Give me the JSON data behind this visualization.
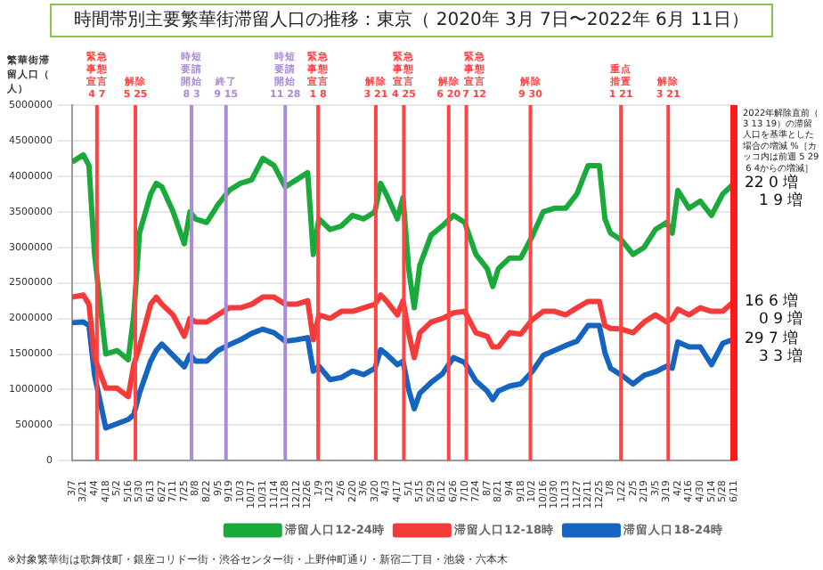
{
  "chart_data": {
    "type": "line",
    "title": "時間帯別主要繁華街滞留人口の推移：東京（ 2020年 3月 7日〜2022年 6月 11日）",
    "ylabel": "繁華街滞留人口（人）",
    "x": [
      "2020-03-07",
      "2020-03-21",
      "2020-03-28",
      "2020-04-04",
      "2020-04-18",
      "2020-05-02",
      "2020-05-16",
      "2020-05-23",
      "2020-05-30",
      "2020-06-13",
      "2020-06-20",
      "2020-06-27",
      "2020-07-11",
      "2020-07-25",
      "2020-08-01",
      "2020-08-08",
      "2020-08-22",
      "2020-09-05",
      "2020-09-19",
      "2020-10-03",
      "2020-10-17",
      "2020-10-31",
      "2020-11-14",
      "2020-11-28",
      "2020-12-12",
      "2020-12-26",
      "2021-01-02",
      "2021-01-09",
      "2021-01-23",
      "2021-02-06",
      "2021-02-20",
      "2021-03-06",
      "2021-03-20",
      "2021-03-27",
      "2021-04-03",
      "2021-04-17",
      "2021-04-24",
      "2021-05-01",
      "2021-05-08",
      "2021-05-15",
      "2021-05-29",
      "2021-06-12",
      "2021-06-26",
      "2021-07-10",
      "2021-07-24",
      "2021-08-07",
      "2021-08-14",
      "2021-08-21",
      "2021-09-04",
      "2021-09-18",
      "2021-10-02",
      "2021-10-16",
      "2021-10-30",
      "2021-11-13",
      "2021-11-27",
      "2021-12-11",
      "2021-12-25",
      "2022-01-01",
      "2022-01-08",
      "2022-01-22",
      "2022-02-05",
      "2022-02-19",
      "2022-03-05",
      "2022-03-19",
      "2022-03-26",
      "2022-04-02",
      "2022-04-16",
      "2022-04-30",
      "2022-05-14",
      "2022-05-28",
      "2022-06-11"
    ],
    "series": [
      {
        "name": "滞留人口12-24時",
        "color": "#1aaa3c",
        "values": [
          4200000,
          4300000,
          4150000,
          2900000,
          1500000,
          1550000,
          1420000,
          2050000,
          3200000,
          3750000,
          3900000,
          3850000,
          3500000,
          3050000,
          3500000,
          3400000,
          3350000,
          3600000,
          3800000,
          3900000,
          3950000,
          4250000,
          4150000,
          3850000,
          3950000,
          4050000,
          2900000,
          3400000,
          3250000,
          3300000,
          3450000,
          3400000,
          3500000,
          3900000,
          3750000,
          3400000,
          3700000,
          2700000,
          2150000,
          2750000,
          3170000,
          3300000,
          3450000,
          3350000,
          2900000,
          2700000,
          2450000,
          2700000,
          2850000,
          2850000,
          3150000,
          3500000,
          3550000,
          3550000,
          3750000,
          4150000,
          4150000,
          3400000,
          3200000,
          3100000,
          2900000,
          3000000,
          3250000,
          3350000,
          3200000,
          3800000,
          3550000,
          3650000,
          3450000,
          3750000,
          3900000
        ]
      },
      {
        "name": "滞留人口12-18時",
        "color": "#f53a3a",
        "values": [
          2300000,
          2330000,
          2200000,
          1450000,
          1020000,
          1020000,
          900000,
          1350000,
          1600000,
          2200000,
          2300000,
          2200000,
          2050000,
          1750000,
          2000000,
          1950000,
          1950000,
          2050000,
          2150000,
          2150000,
          2200000,
          2300000,
          2300000,
          2200000,
          2200000,
          2250000,
          1700000,
          2050000,
          2000000,
          2100000,
          2100000,
          2150000,
          2200000,
          2330000,
          2250000,
          2050000,
          2250000,
          1800000,
          1450000,
          1800000,
          1950000,
          2000000,
          2080000,
          2100000,
          1800000,
          1750000,
          1600000,
          1600000,
          1800000,
          1780000,
          1980000,
          2100000,
          2100000,
          2050000,
          2150000,
          2240000,
          2240000,
          1900000,
          1860000,
          1850000,
          1800000,
          1950000,
          2050000,
          1950000,
          2000000,
          2130000,
          2050000,
          2150000,
          2100000,
          2100000,
          2240000
        ]
      },
      {
        "name": "滞留人口18-24時",
        "color": "#1565c0",
        "values": [
          1940000,
          1950000,
          1900000,
          1200000,
          460000,
          520000,
          580000,
          650000,
          950000,
          1400000,
          1550000,
          1640000,
          1480000,
          1320000,
          1490000,
          1400000,
          1400000,
          1550000,
          1630000,
          1700000,
          1790000,
          1850000,
          1800000,
          1680000,
          1700000,
          1730000,
          1260000,
          1330000,
          1140000,
          1170000,
          1260000,
          1210000,
          1300000,
          1560000,
          1500000,
          1350000,
          1400000,
          1000000,
          730000,
          950000,
          1100000,
          1220000,
          1450000,
          1380000,
          1120000,
          980000,
          860000,
          980000,
          1050000,
          1080000,
          1250000,
          1480000,
          1550000,
          1620000,
          1680000,
          1900000,
          1900000,
          1520000,
          1300000,
          1200000,
          1080000,
          1200000,
          1250000,
          1330000,
          1300000,
          1670000,
          1600000,
          1600000,
          1350000,
          1650000,
          1710000
        ]
      }
    ],
    "xlim": [
      "2020-03-07",
      "2022-06-11"
    ],
    "xticks": [
      {
        "value": "2020-03-07",
        "label": "3/7"
      },
      {
        "value": "2020-03-21",
        "label": "3/21"
      },
      {
        "value": "2020-04-04",
        "label": "4/4"
      },
      {
        "value": "2020-04-18",
        "label": "4/18"
      },
      {
        "value": "2020-05-02",
        "label": "5/2"
      },
      {
        "value": "2020-05-16",
        "label": "5/16"
      },
      {
        "value": "2020-05-30",
        "label": "5/30"
      },
      {
        "value": "2020-06-13",
        "label": "6/13"
      },
      {
        "value": "2020-06-27",
        "label": "6/27"
      },
      {
        "value": "2020-07-11",
        "label": "7/11"
      },
      {
        "value": "2020-07-25",
        "label": "7/25"
      },
      {
        "value": "2020-08-08",
        "label": "8/8"
      },
      {
        "value": "2020-08-22",
        "label": "8/22"
      },
      {
        "value": "2020-09-05",
        "label": "9/5"
      },
      {
        "value": "2020-09-19",
        "label": "9/19"
      },
      {
        "value": "2020-10-03",
        "label": "10/3"
      },
      {
        "value": "2020-10-17",
        "label": "10/17"
      },
      {
        "value": "2020-10-31",
        "label": "10/31"
      },
      {
        "value": "2020-11-14",
        "label": "11/14"
      },
      {
        "value": "2020-11-28",
        "label": "11/28"
      },
      {
        "value": "2020-12-12",
        "label": "12/12"
      },
      {
        "value": "2020-12-26",
        "label": "12/26"
      },
      {
        "value": "2021-01-09",
        "label": "1/9"
      },
      {
        "value": "2021-01-23",
        "label": "1/23"
      },
      {
        "value": "2021-02-06",
        "label": "2/6"
      },
      {
        "value": "2021-02-20",
        "label": "2/20"
      },
      {
        "value": "2021-03-06",
        "label": "3/6"
      },
      {
        "value": "2021-03-20",
        "label": "3/20"
      },
      {
        "value": "2021-04-03",
        "label": "4/3"
      },
      {
        "value": "2021-04-17",
        "label": "4/17"
      },
      {
        "value": "2021-05-01",
        "label": "5/1"
      },
      {
        "value": "2021-05-15",
        "label": "5/15"
      },
      {
        "value": "2021-05-29",
        "label": "5/29"
      },
      {
        "value": "2021-06-12",
        "label": "6/12"
      },
      {
        "value": "2021-06-26",
        "label": "6/26"
      },
      {
        "value": "2021-07-10",
        "label": "7/10"
      },
      {
        "value": "2021-07-24",
        "label": "7/24"
      },
      {
        "value": "2021-08-07",
        "label": "8/7"
      },
      {
        "value": "2021-08-21",
        "label": "8/21"
      },
      {
        "value": "2021-09-04",
        "label": "9/4"
      },
      {
        "value": "2021-09-18",
        "label": "9/18"
      },
      {
        "value": "2021-10-02",
        "label": "10/2"
      },
      {
        "value": "2021-10-16",
        "label": "10/16"
      },
      {
        "value": "2021-10-30",
        "label": "10/30"
      },
      {
        "value": "2021-11-13",
        "label": "11/13"
      },
      {
        "value": "2021-11-27",
        "label": "11/27"
      },
      {
        "value": "2021-12-11",
        "label": "12/11"
      },
      {
        "value": "2021-12-25",
        "label": "12/25"
      },
      {
        "value": "2022-01-08",
        "label": "1/8"
      },
      {
        "value": "2022-01-22",
        "label": "1/22"
      },
      {
        "value": "2022-02-05",
        "label": "2/5"
      },
      {
        "value": "2022-02-19",
        "label": "2/19"
      },
      {
        "value": "2022-03-05",
        "label": "3/5"
      },
      {
        "value": "2022-03-19",
        "label": "3/19"
      },
      {
        "value": "2022-04-02",
        "label": "4/2"
      },
      {
        "value": "2022-04-16",
        "label": "4/16"
      },
      {
        "value": "2022-04-30",
        "label": "4/30"
      },
      {
        "value": "2022-05-14",
        "label": "5/14"
      },
      {
        "value": "2022-05-28",
        "label": "5/28"
      },
      {
        "value": "2022-06-11",
        "label": "6/11"
      }
    ],
    "ylim": [
      0,
      5000000
    ],
    "yticks": [
      0,
      500000,
      1000000,
      1500000,
      2000000,
      2500000,
      3000000,
      3500000,
      4000000,
      4500000,
      5000000
    ],
    "grid": "y",
    "legend": "bottom right",
    "ref_lines": [
      {
        "axis": "x",
        "value": "2020-04-07",
        "label": "緊急事態宣言\n4 7",
        "color": "#ff4444"
      },
      {
        "axis": "x",
        "value": "2020-05-25",
        "label": "解除\n5 25",
        "color": "#ff4444"
      },
      {
        "axis": "x",
        "value": "2020-08-03",
        "label": "時短要請開始\n8 3",
        "color": "#a98bd6"
      },
      {
        "axis": "x",
        "value": "2020-09-15",
        "label": "終了\n9 15",
        "color": "#a98bd6"
      },
      {
        "axis": "x",
        "value": "2020-11-28",
        "label": "時短要請開始\n11 28",
        "color": "#a98bd6"
      },
      {
        "axis": "x",
        "value": "2021-01-08",
        "label": "緊急事態宣言\n1 8",
        "color": "#ff4444"
      },
      {
        "axis": "x",
        "value": "2021-03-21",
        "label": "解除\n3 21",
        "color": "#ff4444"
      },
      {
        "axis": "x",
        "value": "2021-04-25",
        "label": "緊急事態宣言\n4 25",
        "color": "#ff4444"
      },
      {
        "axis": "x",
        "value": "2021-06-20",
        "label": "解除\n6 20",
        "color": "#ff4444"
      },
      {
        "axis": "x",
        "value": "2021-07-12",
        "label": "緊急事態宣言\n7 12",
        "color": "#ff4444"
      },
      {
        "axis": "x",
        "value": "2021-09-30",
        "label": "解除\n9 30",
        "color": "#ff4444"
      },
      {
        "axis": "x",
        "value": "2022-01-21",
        "label": "重点措置\n1 21",
        "color": "#ff4444"
      },
      {
        "axis": "x",
        "value": "2022-03-21",
        "label": "解除\n3 21",
        "color": "#ff4444"
      },
      {
        "axis": "x",
        "value": "2022-06-11",
        "label": null,
        "color": "#ff1a1a"
      }
    ],
    "annotations": [
      "2022年解除直前（3 13 19）の滞留人口を基準とした場合の増減 %［カッコ内は前週 5 29 6 4からの増減］",
      "※対象繁華街は歌舞伎町・銀座コリドー街・渋谷センター街・上野仲町通り・新宿二丁目・池袋・六本木",
      {
        "text": "22 0 増\n1 9 増",
        "x": "2022-06-11",
        "y": 3900000
      },
      {
        "text": "16 6 増\n0 9 増",
        "x": "2022-06-11",
        "y": 2240000
      },
      {
        "text": "29 7 増\n3 3 増",
        "x": "2022-06-11",
        "y": 1710000
      }
    ]
  }
}
